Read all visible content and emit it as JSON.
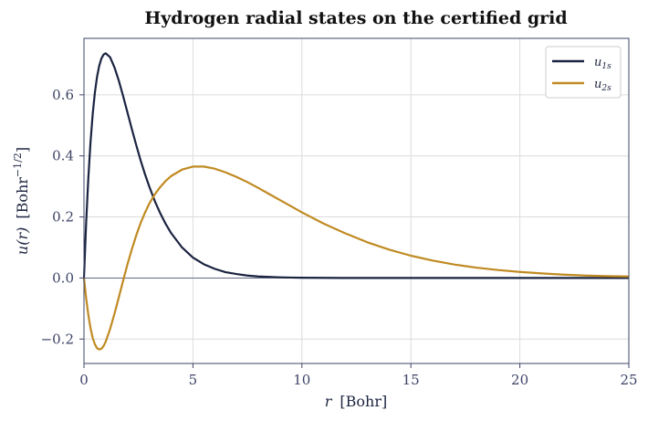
{
  "chart_data": {
    "type": "line",
    "title": "Hydrogen radial states on the certified grid",
    "xlabel_var": "r",
    "xlabel_unit": "[Bohr]",
    "ylabel_var": "u(r)",
    "ylabel_unit": "[Bohr",
    "ylabel_exp": "−1/2",
    "ylabel_close": "]",
    "xlim": [
      0,
      25
    ],
    "ylim": [
      -0.28,
      0.785
    ],
    "xticks": [
      0,
      5,
      10,
      15,
      20,
      25
    ],
    "xtick_labels": [
      "0",
      "5",
      "10",
      "15",
      "20",
      "25"
    ],
    "yticks": [
      -0.2,
      0.0,
      0.2,
      0.4,
      0.6
    ],
    "ytick_labels": [
      "−0.2",
      "0.0",
      "0.2",
      "0.4",
      "0.6"
    ],
    "grid": true,
    "zero_line": true,
    "legend_position": "top-right",
    "x": [
      0,
      0.1,
      0.2,
      0.3,
      0.4,
      0.5,
      0.6,
      0.7,
      0.8,
      0.9,
      1.0,
      1.2,
      1.4,
      1.6,
      1.8,
      2.0,
      2.2,
      2.4,
      2.6,
      2.8,
      3.0,
      3.25,
      3.5,
      3.75,
      4.0,
      4.5,
      5.0,
      5.5,
      6.0,
      6.5,
      7.0,
      7.5,
      8.0,
      8.5,
      9.0,
      9.5,
      10.0,
      11.0,
      12.0,
      13.0,
      14.0,
      15.0,
      16.0,
      17.0,
      18.0,
      19.0,
      20.0,
      21.0,
      22.0,
      23.0,
      24.0,
      25.0
    ],
    "series": [
      {
        "name": "u",
        "name_sub": "1s",
        "color": "#1a2340",
        "values": [
          0.0,
          0.181,
          0.327,
          0.444,
          0.536,
          0.607,
          0.659,
          0.695,
          0.719,
          0.732,
          0.736,
          0.723,
          0.69,
          0.646,
          0.595,
          0.541,
          0.487,
          0.435,
          0.385,
          0.34,
          0.299,
          0.252,
          0.212,
          0.177,
          0.147,
          0.1,
          0.067,
          0.045,
          0.03,
          0.019,
          0.013,
          0.008,
          0.005,
          0.0035,
          0.0022,
          0.0014,
          0.0009,
          0.0004,
          0.0001,
          0.0,
          0.0,
          0.0,
          0.0,
          0.0,
          0.0,
          0.0,
          0.0,
          0.0,
          0.0,
          0.0,
          0.0,
          0.0
        ]
      },
      {
        "name": "u",
        "name_sub": "2s",
        "color": "#c08a22",
        "values": [
          0.0,
          -0.066,
          -0.121,
          -0.164,
          -0.196,
          -0.217,
          -0.23,
          -0.234,
          -0.232,
          -0.223,
          -0.208,
          -0.167,
          -0.117,
          -0.063,
          -0.008,
          0.046,
          0.095,
          0.14,
          0.18,
          0.214,
          0.244,
          0.274,
          0.298,
          0.318,
          0.334,
          0.355,
          0.365,
          0.365,
          0.358,
          0.346,
          0.331,
          0.314,
          0.295,
          0.275,
          0.255,
          0.235,
          0.215,
          0.178,
          0.146,
          0.117,
          0.093,
          0.073,
          0.057,
          0.044,
          0.034,
          0.026,
          0.02,
          0.015,
          0.011,
          0.008,
          0.006,
          0.005
        ]
      }
    ]
  },
  "colors": {
    "axes_frame": "#3d4466",
    "grid": "#dcdcdc",
    "zero_line": "#3d4466"
  }
}
